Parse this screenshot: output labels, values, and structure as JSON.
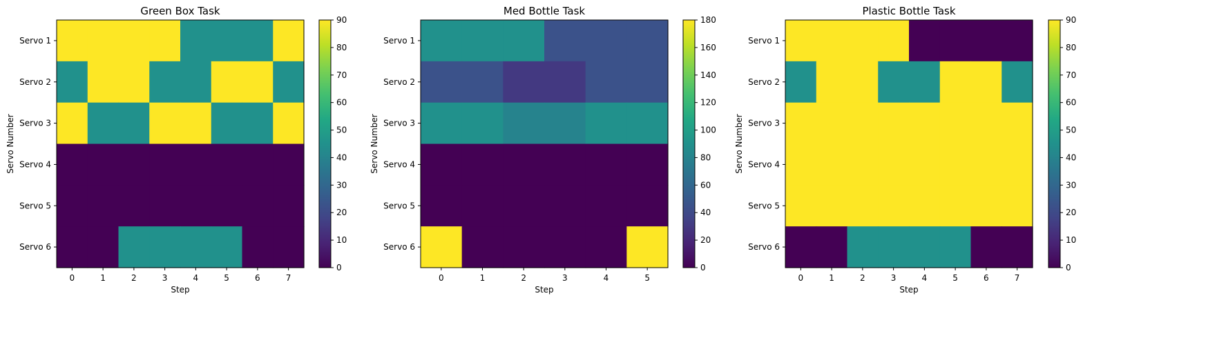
{
  "chart_data": [
    {
      "type": "heatmap",
      "title": "Green Box Task",
      "xlabel": "Step",
      "ylabel": "Servo Number",
      "x": [
        "0",
        "1",
        "2",
        "3",
        "4",
        "5",
        "6",
        "7"
      ],
      "y": [
        "Servo 1",
        "Servo 2",
        "Servo 3",
        "Servo 4",
        "Servo 5",
        "Servo 6"
      ],
      "values": [
        [
          90,
          90,
          90,
          90,
          45,
          45,
          45,
          90
        ],
        [
          45,
          90,
          90,
          45,
          45,
          90,
          90,
          45
        ],
        [
          90,
          45,
          45,
          90,
          90,
          45,
          45,
          90
        ],
        [
          0,
          0,
          0,
          0,
          0,
          0,
          0,
          0
        ],
        [
          0,
          0,
          0,
          0,
          0,
          0,
          0,
          0
        ],
        [
          0,
          0,
          45,
          45,
          45,
          45,
          0,
          0
        ]
      ],
      "colorbar": {
        "min": 0,
        "max": 90,
        "ticks": [
          "0",
          "10",
          "20",
          "30",
          "40",
          "50",
          "60",
          "70",
          "80",
          "90"
        ]
      },
      "colormap": "viridis"
    },
    {
      "type": "heatmap",
      "title": "Med Bottle Task",
      "xlabel": "Step",
      "ylabel": "Servo Number",
      "x": [
        "0",
        "1",
        "2",
        "3",
        "4",
        "5"
      ],
      "y": [
        "Servo 1",
        "Servo 2",
        "Servo 3",
        "Servo 4",
        "Servo 5",
        "Servo 6"
      ],
      "values": [
        [
          90,
          90,
          90,
          45,
          45,
          45
        ],
        [
          45,
          45,
          30,
          30,
          45,
          45
        ],
        [
          90,
          90,
          80,
          80,
          90,
          90
        ],
        [
          0,
          0,
          0,
          0,
          0,
          0
        ],
        [
          0,
          0,
          0,
          0,
          0,
          0
        ],
        [
          180,
          0,
          0,
          0,
          0,
          180
        ]
      ],
      "colorbar": {
        "min": 0,
        "max": 180,
        "ticks": [
          "0",
          "20",
          "40",
          "60",
          "80",
          "100",
          "120",
          "140",
          "160",
          "180"
        ]
      },
      "colormap": "viridis"
    },
    {
      "type": "heatmap",
      "title": "Plastic Bottle Task",
      "xlabel": "Step",
      "ylabel": "Servo Number",
      "x": [
        "0",
        "1",
        "2",
        "3",
        "4",
        "5",
        "6",
        "7"
      ],
      "y": [
        "Servo 1",
        "Servo 2",
        "Servo 3",
        "Servo 4",
        "Servo 5",
        "Servo 6"
      ],
      "values": [
        [
          90,
          90,
          90,
          90,
          0,
          0,
          0,
          0
        ],
        [
          45,
          90,
          90,
          45,
          45,
          90,
          90,
          45
        ],
        [
          90,
          90,
          90,
          90,
          90,
          90,
          90,
          90
        ],
        [
          90,
          90,
          90,
          90,
          90,
          90,
          90,
          90
        ],
        [
          90,
          90,
          90,
          90,
          90,
          90,
          90,
          90
        ],
        [
          0,
          0,
          45,
          45,
          45,
          45,
          0,
          0
        ]
      ],
      "colorbar": {
        "min": 0,
        "max": 90,
        "ticks": [
          "0",
          "10",
          "20",
          "30",
          "40",
          "50",
          "60",
          "70",
          "80",
          "90"
        ]
      },
      "colormap": "viridis"
    }
  ]
}
